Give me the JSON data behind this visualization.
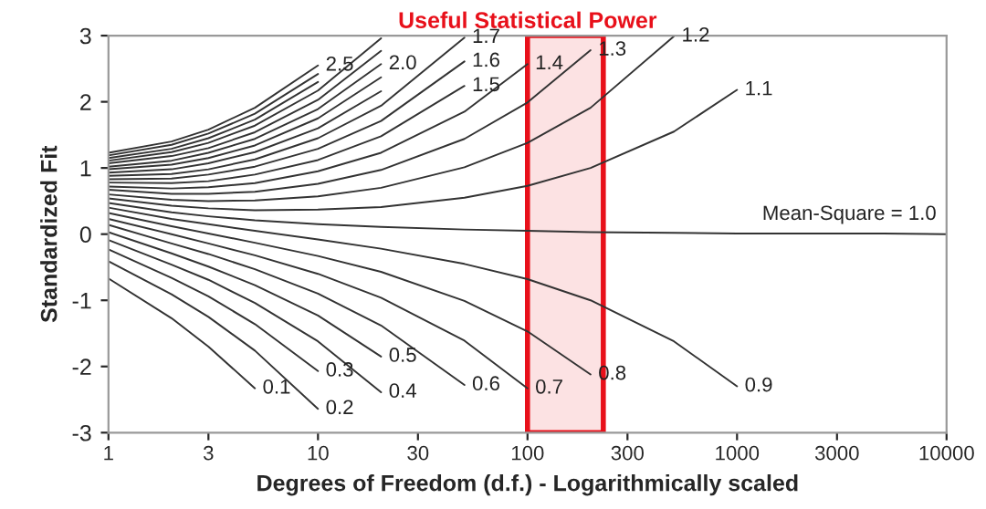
{
  "chart_data": {
    "type": "line",
    "title": "Useful Statistical Power",
    "xlabel": "Degrees of Freedom (d.f.) - Logarithmically scaled",
    "ylabel": "Standardized Fit",
    "log": "x",
    "xlim": [
      1,
      10000
    ],
    "xticks": [
      1,
      3,
      10,
      30,
      100,
      300,
      1000,
      3000,
      10000
    ],
    "ylim": [
      -3,
      3
    ],
    "yticks": [
      -3,
      -2,
      -1,
      0,
      1,
      2,
      3
    ],
    "grid": false,
    "legend": false,
    "marker": "none",
    "line_style": "solid",
    "x": [
      1,
      2,
      3,
      5,
      10,
      20,
      50,
      100,
      200,
      500,
      1000,
      2000,
      5000,
      10000
    ],
    "bands": [
      {
        "axis": "x",
        "from": 100,
        "to": 230,
        "color": "#e8101a"
      }
    ],
    "series": [
      {
        "name": "0.1",
        "color": "#333333",
        "values": [
          -0.67,
          -1.27,
          -1.7,
          -2.33,
          null,
          null,
          null,
          null,
          null,
          null,
          null,
          null,
          null,
          null
        ]
      },
      {
        "name": "0.2",
        "color": "#333333",
        "values": [
          -0.41,
          -0.91,
          -1.25,
          -1.76,
          -2.64,
          null,
          null,
          null,
          null,
          null,
          null,
          null,
          null,
          null
        ]
      },
      {
        "name": "0.3",
        "color": "#333333",
        "values": [
          -0.23,
          -0.66,
          -0.94,
          -1.36,
          -2.07,
          null,
          null,
          null,
          null,
          null,
          null,
          null,
          null,
          null
        ]
      },
      {
        "name": "0.4",
        "color": "#333333",
        "values": [
          -0.09,
          -0.46,
          -0.69,
          -1.04,
          -1.62,
          -2.39,
          null,
          null,
          null,
          null,
          null,
          null,
          null,
          null
        ]
      },
      {
        "name": "0.5",
        "color": "#333333",
        "values": [
          0.03,
          -0.29,
          -0.49,
          -0.77,
          -1.23,
          -1.85,
          null,
          null,
          null,
          null,
          null,
          null,
          null,
          null
        ]
      },
      {
        "name": "0.6",
        "color": "#333333",
        "values": [
          0.14,
          -0.14,
          -0.3,
          -0.53,
          -0.9,
          -1.38,
          -2.28,
          null,
          null,
          null,
          null,
          null,
          null,
          null
        ]
      },
      {
        "name": "0.7",
        "color": "#333333",
        "values": [
          0.23,
          0.0,
          -0.14,
          -0.32,
          -0.6,
          -0.96,
          -1.61,
          -2.33,
          null,
          null,
          null,
          null,
          null,
          null
        ]
      },
      {
        "name": "0.8",
        "color": "#333333",
        "values": [
          0.32,
          0.12,
          0.01,
          -0.13,
          -0.33,
          -0.57,
          -1.01,
          -1.47,
          -2.12,
          null,
          null,
          null,
          null,
          null
        ]
      },
      {
        "name": "0.9",
        "color": "#333333",
        "values": [
          0.4,
          0.23,
          0.15,
          0.05,
          -0.08,
          -0.22,
          -0.45,
          -0.68,
          -1.0,
          -1.62,
          -2.3,
          null,
          null,
          null
        ]
      },
      {
        "name": "Mean-Square = 1.0",
        "color": "#333333",
        "values": [
          0.47,
          0.33,
          0.27,
          0.21,
          0.15,
          0.11,
          0.07,
          0.05,
          0.03,
          0.02,
          0.01,
          0.01,
          0.01,
          0.0
        ]
      },
      {
        "name": "1.1",
        "color": "#333333",
        "values": [
          0.54,
          0.43,
          0.39,
          0.36,
          0.37,
          0.41,
          0.55,
          0.73,
          1.0,
          1.55,
          2.18,
          null,
          null,
          null
        ]
      },
      {
        "name": "1.2",
        "color": "#333333",
        "values": [
          0.6,
          0.52,
          0.5,
          0.51,
          0.57,
          0.7,
          1.01,
          1.38,
          1.91,
          2.99,
          null,
          null,
          null,
          null
        ]
      },
      {
        "name": "1.3",
        "color": "#333333",
        "values": [
          0.67,
          0.61,
          0.61,
          0.64,
          0.76,
          0.97,
          1.44,
          1.99,
          2.78,
          null,
          null,
          null,
          null,
          null
        ]
      },
      {
        "name": "1.4",
        "color": "#333333",
        "values": [
          0.72,
          0.69,
          0.71,
          0.77,
          0.95,
          1.23,
          1.85,
          2.57,
          null,
          null,
          null,
          null,
          null,
          null
        ]
      },
      {
        "name": "1.5",
        "color": "#333333",
        "values": [
          0.78,
          0.77,
          0.8,
          0.9,
          1.12,
          1.48,
          2.24,
          null,
          null,
          null,
          null,
          null,
          null,
          null
        ]
      },
      {
        "name": "1.6",
        "color": "#333333",
        "values": [
          0.83,
          0.84,
          0.9,
          1.02,
          1.29,
          1.71,
          2.61,
          null,
          null,
          null,
          null,
          null,
          null,
          null
        ]
      },
      {
        "name": "1.7",
        "color": "#333333",
        "values": [
          0.88,
          0.91,
          0.98,
          1.13,
          1.45,
          1.94,
          2.97,
          null,
          null,
          null,
          null,
          null,
          null,
          null
        ]
      },
      {
        "color": "#333333",
        "values": [
          0.93,
          0.98,
          1.07,
          1.24,
          1.6,
          2.16,
          null,
          null,
          null,
          null,
          null,
          null,
          null,
          null
        ]
      },
      {
        "color": "#333333",
        "values": [
          0.98,
          1.05,
          1.15,
          1.34,
          1.75,
          2.37,
          null,
          null,
          null,
          null,
          null,
          null,
          null,
          null
        ]
      },
      {
        "name": "2.0",
        "color": "#333333",
        "values": [
          1.02,
          1.11,
          1.23,
          1.44,
          1.89,
          2.57,
          null,
          null,
          null,
          null,
          null,
          null,
          null,
          null
        ]
      },
      {
        "color": "#333333",
        "values": [
          1.07,
          1.18,
          1.3,
          1.54,
          2.03,
          2.77,
          null,
          null,
          null,
          null,
          null,
          null,
          null,
          null
        ]
      },
      {
        "color": "#333333",
        "values": [
          1.11,
          1.24,
          1.38,
          1.64,
          2.17,
          2.96,
          null,
          null,
          null,
          null,
          null,
          null,
          null,
          null
        ]
      },
      {
        "color": "#333333",
        "values": [
          1.15,
          1.29,
          1.45,
          1.73,
          2.3,
          null,
          null,
          null,
          null,
          null,
          null,
          null,
          null,
          null
        ]
      },
      {
        "color": "#333333",
        "values": [
          1.19,
          1.35,
          1.52,
          1.82,
          2.42,
          null,
          null,
          null,
          null,
          null,
          null,
          null,
          null,
          null
        ]
      },
      {
        "name": "2.5",
        "color": "#333333",
        "values": [
          1.23,
          1.4,
          1.58,
          1.91,
          2.55,
          null,
          null,
          null,
          null,
          null,
          null,
          null,
          null,
          null
        ]
      }
    ]
  }
}
